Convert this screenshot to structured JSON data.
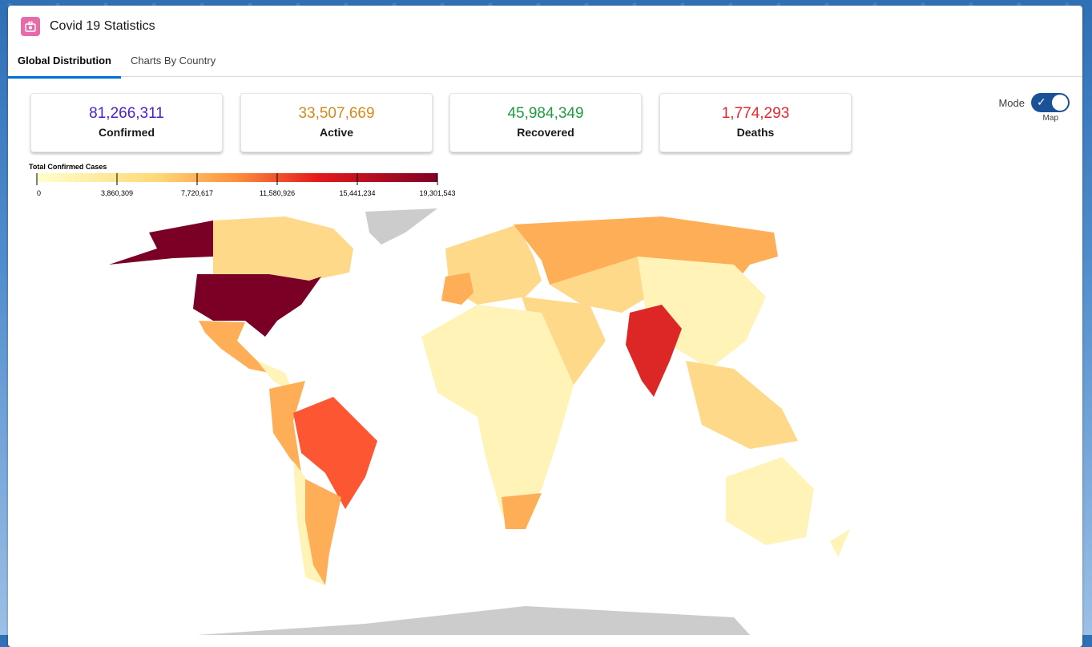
{
  "app": {
    "title": "Covid 19 Statistics",
    "icon": "medical-kit-icon",
    "icon_color": "#e56ba9"
  },
  "tabs": [
    {
      "label": "Global Distribution",
      "active": true
    },
    {
      "label": "Charts By Country",
      "active": false
    }
  ],
  "stats": [
    {
      "value": "81,266,311",
      "label": "Confirmed",
      "color": "#4b22c9"
    },
    {
      "value": "33,507,669",
      "label": "Active",
      "color": "#d4891c"
    },
    {
      "value": "45,984,349",
      "label": "Recovered",
      "color": "#1f9d3e"
    },
    {
      "value": "1,774,293",
      "label": "Deaths",
      "color": "#e8272c"
    }
  ],
  "mode": {
    "label": "Mode",
    "value": "Map",
    "on": true
  },
  "legend": {
    "title": "Total Confirmed Cases",
    "ticks": [
      "0",
      "3,860,309",
      "7,720,617",
      "11,580,926",
      "15,441,234",
      "19,301,543"
    ],
    "tick_values": [
      0,
      3860309,
      7720617,
      11580926,
      15441234,
      19301543
    ],
    "max": 19301543
  },
  "map_colors": {
    "very_high": "#7b0025",
    "high": "#dd2626",
    "upper_mid": "#fd5632",
    "mid": "#fdae56",
    "low": "#fed98a",
    "very_low": "#fff3b8",
    "no_data": "#cccccc"
  }
}
